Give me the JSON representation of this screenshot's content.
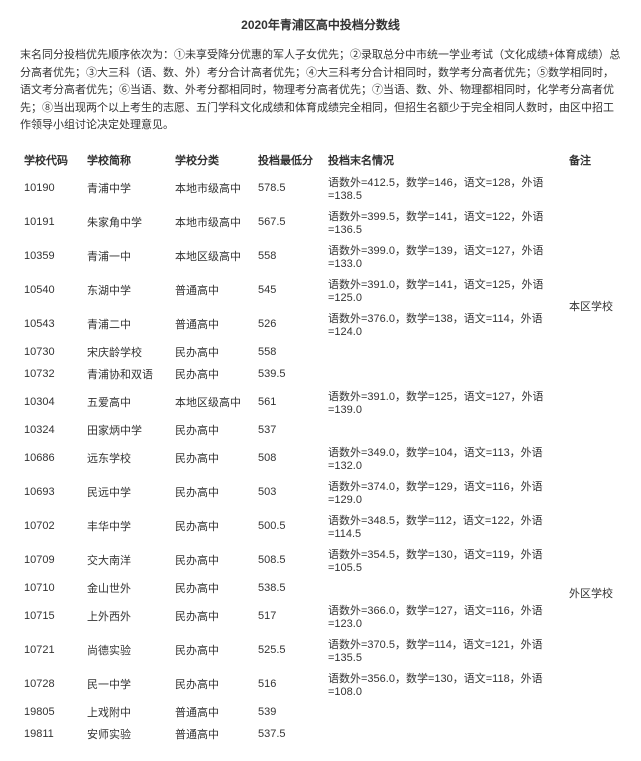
{
  "title": "2020年青浦区高中投档分数线",
  "notes": "末名同分投档优先顺序依次为：①未享受降分优惠的军人子女优先；②录取总分中市统一学业考试（文化成绩+体育成绩）总分高者优先；③大三科（语、数、外）考分合计高者优先；④大三科考分合计相同时，数学考分高者优先；⑤数学相同时，语文考分高者优先；⑥当语、数、外考分都相同时，物理考分高者优先；⑦当语、数、外、物理都相同时，化学考分高者优先；⑧当出现两个以上考生的志愿、五门学科文化成绩和体育成绩完全相同，但招生名额少于完全相同人数时，由区中招工作领导小组讨论决定处理意见。",
  "headers": {
    "code": "学校代码",
    "name": "学校简称",
    "type": "学校分类",
    "score": "投档最低分",
    "last": "投档末名情况",
    "remark": "备注"
  },
  "groups": [
    {
      "remark": "本区学校",
      "rows": [
        {
          "code": "10190",
          "name": "青浦中学",
          "type": "本地市级高中",
          "score": "578.5",
          "last": "语数外=412.5，数学=146，语文=128，外语=138.5"
        },
        {
          "code": "10191",
          "name": "朱家角中学",
          "type": "本地市级高中",
          "score": "567.5",
          "last": "语数外=399.5，数学=141，语文=122，外语=136.5"
        },
        {
          "code": "10359",
          "name": "青浦一中",
          "type": "本地区级高中",
          "score": "558",
          "last": "语数外=399.0，数学=139，语文=127，外语=133.0"
        },
        {
          "code": "10540",
          "name": "东湖中学",
          "type": "普通高中",
          "score": "545",
          "last": "语数外=391.0，数学=141，语文=125，外语=125.0"
        },
        {
          "code": "10543",
          "name": "青浦二中",
          "type": "普通高中",
          "score": "526",
          "last": "语数外=376.0，数学=138，语文=114，外语=124.0"
        },
        {
          "code": "10730",
          "name": "宋庆龄学校",
          "type": "民办高中",
          "score": "558",
          "last": ""
        },
        {
          "code": "10732",
          "name": "青浦协和双语",
          "type": "民办高中",
          "score": "539.5",
          "last": ""
        },
        {
          "code": "10304",
          "name": "五爱高中",
          "type": "本地区级高中",
          "score": "561",
          "last": "语数外=391.0，数学=125，语文=127，外语=139.0"
        },
        {
          "code": "10324",
          "name": "田家炳中学",
          "type": "民办高中",
          "score": "537",
          "last": ""
        }
      ]
    },
    {
      "remark": "外区学校",
      "rows": [
        {
          "code": "10686",
          "name": "远东学校",
          "type": "民办高中",
          "score": "508",
          "last": "语数外=349.0，数学=104，语文=113，外语=132.0"
        },
        {
          "code": "10693",
          "name": "民远中学",
          "type": "民办高中",
          "score": "503",
          "last": "语数外=374.0，数学=129，语文=116，外语=129.0"
        },
        {
          "code": "10702",
          "name": "丰华中学",
          "type": "民办高中",
          "score": "500.5",
          "last": "语数外=348.5，数学=112，语文=122，外语=114.5"
        },
        {
          "code": "10709",
          "name": "交大南洋",
          "type": "民办高中",
          "score": "508.5",
          "last": "语数外=354.5，数学=130，语文=119，外语=105.5"
        },
        {
          "code": "10710",
          "name": "金山世外",
          "type": "民办高中",
          "score": "538.5",
          "last": ""
        },
        {
          "code": "10715",
          "name": "上外西外",
          "type": "民办高中",
          "score": "517",
          "last": "语数外=366.0，数学=127，语文=116，外语=123.0"
        },
        {
          "code": "10721",
          "name": "尚德实验",
          "type": "民办高中",
          "score": "525.5",
          "last": "语数外=370.5，数学=114，语文=121，外语=135.5"
        },
        {
          "code": "10728",
          "name": "民一中学",
          "type": "民办高中",
          "score": "516",
          "last": "语数外=356.0，数学=130，语文=118，外语=108.0"
        },
        {
          "code": "19805",
          "name": "上戏附中",
          "type": "普通高中",
          "score": "539",
          "last": ""
        },
        {
          "code": "19811",
          "name": "安师实验",
          "type": "普通高中",
          "score": "537.5",
          "last": ""
        }
      ]
    }
  ]
}
